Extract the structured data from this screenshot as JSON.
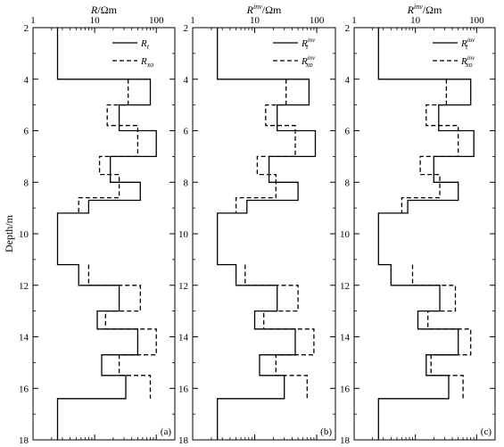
{
  "chart_data": [
    {
      "type": "line",
      "panel_label": "(a)",
      "title_prefix": "R",
      "title_sup": "",
      "title_suffix": "/Ωm",
      "ylabel": "Depth/m",
      "xscale": "log",
      "xlim": [
        1,
        200
      ],
      "x_ticks": [
        1,
        10,
        100
      ],
      "x_tick_labels": [
        "1",
        "10",
        "100"
      ],
      "ylim": [
        2,
        18
      ],
      "y_ticks": [
        2,
        4,
        6,
        8,
        10,
        12,
        14,
        16,
        18
      ],
      "y_tick_labels": [
        "2",
        "4",
        "6",
        "8",
        "10",
        "12",
        "14",
        "16",
        "18"
      ],
      "legend": "top-right",
      "series": [
        {
          "name_base": "R",
          "name_sub": "t",
          "name_sup": "",
          "style": "solid",
          "layers": [
            [
              2,
              4,
              2.5
            ],
            [
              4,
              5,
              80
            ],
            [
              5,
              6,
              25
            ],
            [
              6,
              7,
              100
            ],
            [
              7,
              8,
              18
            ],
            [
              8,
              8.7,
              55
            ],
            [
              8.7,
              9.2,
              8
            ],
            [
              9.2,
              11.2,
              2.5
            ],
            [
              11.2,
              12,
              5.5
            ],
            [
              12,
              13,
              25
            ],
            [
              13,
              13.7,
              11
            ],
            [
              13.7,
              14.7,
              50
            ],
            [
              14.7,
              15.5,
              13
            ],
            [
              15.5,
              16.4,
              32
            ],
            [
              16.4,
              18,
              2.5
            ]
          ]
        },
        {
          "name_base": "R",
          "name_sub": "xo",
          "name_sup": "",
          "style": "dashed",
          "layers": [
            [
              4,
              5,
              35
            ],
            [
              5,
              5.8,
              16
            ],
            [
              5.8,
              7,
              50
            ],
            [
              7,
              7.7,
              12
            ],
            [
              7.7,
              8.6,
              25
            ],
            [
              8.6,
              9.2,
              5.5
            ],
            [
              11.2,
              12,
              8
            ],
            [
              12,
              13,
              55
            ],
            [
              13,
              13.7,
              15
            ],
            [
              13.7,
              14.7,
              100
            ],
            [
              14.7,
              15.5,
              25
            ],
            [
              15.5,
              16.4,
              80
            ]
          ]
        }
      ]
    },
    {
      "type": "line",
      "panel_label": "(b)",
      "title_prefix": "R",
      "title_sup": "inv",
      "title_suffix": "/Ωm",
      "ylabel": "",
      "xscale": "log",
      "xlim": [
        1,
        200
      ],
      "x_ticks": [
        1,
        10,
        100
      ],
      "x_tick_labels": [
        "1",
        "10",
        "100"
      ],
      "ylim": [
        2,
        18
      ],
      "y_ticks": [
        2,
        4,
        6,
        8,
        10,
        12,
        14,
        16,
        18
      ],
      "y_tick_labels": [
        "2",
        "4",
        "6",
        "8",
        "10",
        "12",
        "14",
        "16",
        "18"
      ],
      "legend": "top-right",
      "series": [
        {
          "name_base": "R",
          "name_sub": "t",
          "name_sup": "inv",
          "style": "solid",
          "layers": [
            [
              2,
              4,
              2.5
            ],
            [
              4,
              5,
              75
            ],
            [
              5,
              6,
              23
            ],
            [
              6,
              7,
              95
            ],
            [
              7,
              8,
              17
            ],
            [
              8,
              8.7,
              50
            ],
            [
              8.7,
              9.2,
              7.5
            ],
            [
              9.2,
              11.2,
              2.5
            ],
            [
              11.2,
              12,
              5
            ],
            [
              12,
              13,
              23
            ],
            [
              13,
              13.7,
              10
            ],
            [
              13.7,
              14.7,
              45
            ],
            [
              14.7,
              15.5,
              12
            ],
            [
              15.5,
              16.4,
              30
            ],
            [
              16.4,
              18,
              2.5
            ]
          ]
        },
        {
          "name_base": "R",
          "name_sub": "xo",
          "name_sup": "inv",
          "style": "dashed",
          "layers": [
            [
              4,
              5,
              32
            ],
            [
              5,
              5.8,
              15
            ],
            [
              5.8,
              7,
              45
            ],
            [
              7,
              7.7,
              11
            ],
            [
              7.7,
              8.6,
              22
            ],
            [
              8.6,
              9.2,
              5
            ],
            [
              11.2,
              12,
              7
            ],
            [
              12,
              13,
              50
            ],
            [
              13,
              13.7,
              14
            ],
            [
              13.7,
              14.7,
              90
            ],
            [
              14.7,
              15.5,
              22
            ],
            [
              15.5,
              16.4,
              70
            ]
          ]
        }
      ]
    },
    {
      "type": "line",
      "panel_label": "(c)",
      "title_prefix": "R",
      "title_sup": "inv",
      "title_suffix": "/Ωm",
      "ylabel": "",
      "xscale": "log",
      "xlim": [
        1,
        200
      ],
      "x_ticks": [
        1,
        10,
        100
      ],
      "x_tick_labels": [
        "1",
        "10",
        "100"
      ],
      "ylim": [
        2,
        18
      ],
      "y_ticks": [
        2,
        4,
        6,
        8,
        10,
        12,
        14,
        16,
        18
      ],
      "y_tick_labels": [
        "2",
        "4",
        "6",
        "8",
        "10",
        "12",
        "14",
        "16",
        "18"
      ],
      "legend": "top-right",
      "series": [
        {
          "name_base": "R",
          "name_sub": "t",
          "name_sup": "inv",
          "style": "solid",
          "layers": [
            [
              2,
              4,
              2.5
            ],
            [
              4,
              5,
              80
            ],
            [
              5,
              6,
              24
            ],
            [
              6,
              7,
              90
            ],
            [
              7,
              8,
              20
            ],
            [
              8,
              8.7,
              50
            ],
            [
              8.7,
              9.2,
              7.5
            ],
            [
              9.2,
              11.2,
              2.5
            ],
            [
              11.2,
              12,
              4
            ],
            [
              12,
              13,
              25
            ],
            [
              13,
              13.7,
              11
            ],
            [
              13.7,
              14.7,
              50
            ],
            [
              14.7,
              15.5,
              15
            ],
            [
              15.5,
              16.4,
              35
            ],
            [
              16.4,
              18,
              2.5
            ]
          ]
        },
        {
          "name_base": "R",
          "name_sub": "xo",
          "name_sup": "inv",
          "style": "dashed",
          "layers": [
            [
              4,
              5,
              32
            ],
            [
              5,
              5.8,
              15
            ],
            [
              5.8,
              7,
              50
            ],
            [
              7,
              7.7,
              12
            ],
            [
              7.7,
              8.6,
              25
            ],
            [
              8.6,
              9.2,
              6
            ],
            [
              11.2,
              12,
              9
            ],
            [
              12,
              13,
              45
            ],
            [
              13,
              13.7,
              16
            ],
            [
              13.7,
              14.7,
              80
            ],
            [
              14.7,
              15.5,
              18
            ],
            [
              15.5,
              16.4,
              60
            ]
          ]
        }
      ]
    }
  ]
}
